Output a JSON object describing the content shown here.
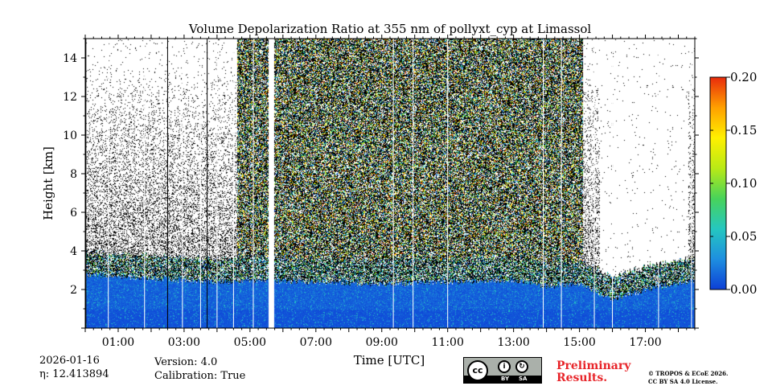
{
  "chart_data": {
    "type": "heatmap",
    "title": "Volume Depolarization Ratio at 355 nm of pollyxt_cyp at Limassol",
    "xlabel": "Time [UTC]",
    "ylabel": "Height [km]",
    "xlim_hours": [
      0,
      18.5
    ],
    "ylim_km": [
      0,
      15
    ],
    "x_ticks": [
      {
        "value": 1,
        "label": "01:00"
      },
      {
        "value": 3,
        "label": "03:00"
      },
      {
        "value": 5,
        "label": "05:00"
      },
      {
        "value": 7,
        "label": "07:00"
      },
      {
        "value": 9,
        "label": "09:00"
      },
      {
        "value": 11,
        "label": "11:00"
      },
      {
        "value": 13,
        "label": "13:00"
      },
      {
        "value": 15,
        "label": "15:00"
      },
      {
        "value": 17,
        "label": "17:00"
      }
    ],
    "y_ticks": [
      {
        "value": 2,
        "label": "2"
      },
      {
        "value": 4,
        "label": "4"
      },
      {
        "value": 6,
        "label": "6"
      },
      {
        "value": 8,
        "label": "8"
      },
      {
        "value": 10,
        "label": "10"
      },
      {
        "value": 12,
        "label": "12"
      },
      {
        "value": 14,
        "label": "14"
      }
    ],
    "colorbar": {
      "range": [
        0.0,
        0.2
      ],
      "colormap": [
        "#0d3fd6",
        "#1e8fe0",
        "#25c7c0",
        "#48d35a",
        "#b9ea16",
        "#fff000",
        "#ffa000",
        "#e82b0c"
      ],
      "ticks": [
        {
          "value": 0.0,
          "label": "0.00"
        },
        {
          "value": 0.05,
          "label": "0.05"
        },
        {
          "value": 0.1,
          "label": "0.10"
        },
        {
          "value": 0.15,
          "label": "0.15"
        },
        {
          "value": 0.2,
          "label": "0.20"
        }
      ]
    },
    "boundary_layer_top_km": [
      {
        "t": 0.0,
        "h": 2.8
      },
      {
        "t": 2.0,
        "h": 2.6
      },
      {
        "t": 4.0,
        "h": 2.4
      },
      {
        "t": 5.5,
        "h": 2.5
      },
      {
        "t": 7.0,
        "h": 2.4
      },
      {
        "t": 9.0,
        "h": 2.3
      },
      {
        "t": 11.0,
        "h": 2.4
      },
      {
        "t": 13.0,
        "h": 2.5
      },
      {
        "t": 14.0,
        "h": 2.2
      },
      {
        "t": 15.0,
        "h": 2.3
      },
      {
        "t": 16.0,
        "h": 1.5
      },
      {
        "t": 17.0,
        "h": 2.0
      },
      {
        "t": 18.5,
        "h": 2.5
      }
    ],
    "noise_regions": [
      {
        "t_start": 4.6,
        "t_end": 15.1,
        "description": "high noise full column"
      }
    ],
    "data_gaps_hours": [
      {
        "t_start": 5.55,
        "t_end": 5.72
      }
    ],
    "profile_gap_lines_hours": [
      0.02,
      0.7,
      1.8,
      2.5,
      2.95,
      3.5,
      3.7,
      4.0,
      4.5,
      5.1,
      9.35,
      9.95,
      11.0,
      13.9,
      14.45,
      15.45,
      16.0,
      17.4,
      18.4
    ]
  },
  "meta": {
    "date": "2026-01-16",
    "eta_label": "η: 12.413894",
    "version": "Version: 4.0",
    "calibration": "Calibration: True"
  },
  "license": {
    "cc_text": "cc",
    "by_text": "BY",
    "sa_text": "SA",
    "preliminary_line1": "Preliminary",
    "preliminary_line2": "Results.",
    "copyright_line1": "© TROPOS & ECoE 2026.",
    "copyright_line2": "CC BY SA 4.0 License."
  }
}
